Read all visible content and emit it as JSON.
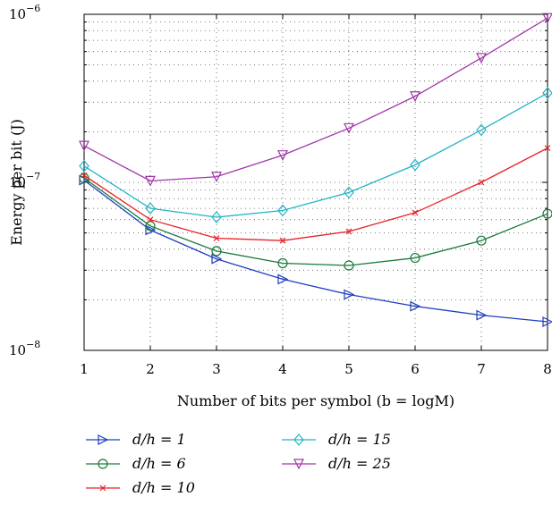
{
  "chart_data": {
    "type": "line",
    "title": "",
    "xlabel": "Number of bits per symbol (b = logM)",
    "ylabel": "Energy per bit (J)",
    "x": [
      1,
      2,
      3,
      4,
      5,
      6,
      7,
      8
    ],
    "xlim": [
      1,
      8
    ],
    "ylim": [
      1e-08,
      1e-06
    ],
    "yscale": "log",
    "grid": true,
    "x_tick_labels": [
      "1",
      "2",
      "3",
      "4",
      "5",
      "6",
      "7",
      "8"
    ],
    "y_tick_labels": [
      {
        "base": "10",
        "exp": "−8",
        "value": 1e-08
      },
      {
        "base": "10",
        "exp": "−7",
        "value": 1e-07
      },
      {
        "base": "10",
        "exp": "−6",
        "value": 1e-06
      }
    ],
    "legend_placement": "bottom",
    "series": [
      {
        "name": "d/h = 1",
        "color": "#1f3fbf",
        "marker": "triangle-right",
        "values": [
          1.03e-07,
          5.2e-08,
          3.5e-08,
          2.65e-08,
          2.15e-08,
          1.83e-08,
          1.62e-08,
          1.48e-08
        ]
      },
      {
        "name": "d/h = 6",
        "color": "#1a7a3a",
        "marker": "circle",
        "values": [
          1.06e-07,
          5.5e-08,
          3.9e-08,
          3.3e-08,
          3.2e-08,
          3.55e-08,
          4.5e-08,
          6.5e-08
        ]
      },
      {
        "name": "d/h = 10",
        "color": "#e8222a",
        "marker": "x",
        "values": [
          1.1e-07,
          6e-08,
          4.65e-08,
          4.5e-08,
          5.1e-08,
          6.6e-08,
          1e-07,
          1.6e-07
        ]
      },
      {
        "name": "d/h = 15",
        "color": "#22b5c4",
        "marker": "diamond",
        "values": [
          1.25e-07,
          7e-08,
          6.2e-08,
          6.8e-08,
          8.7e-08,
          1.27e-07,
          2.05e-07,
          3.4e-07
        ]
      },
      {
        "name": "d/h = 25",
        "color": "#a236a8",
        "marker": "triangle-down",
        "values": [
          1.65e-07,
          1.02e-07,
          1.08e-07,
          1.45e-07,
          2.1e-07,
          3.25e-07,
          5.5e-07,
          9.5e-07
        ]
      }
    ]
  }
}
